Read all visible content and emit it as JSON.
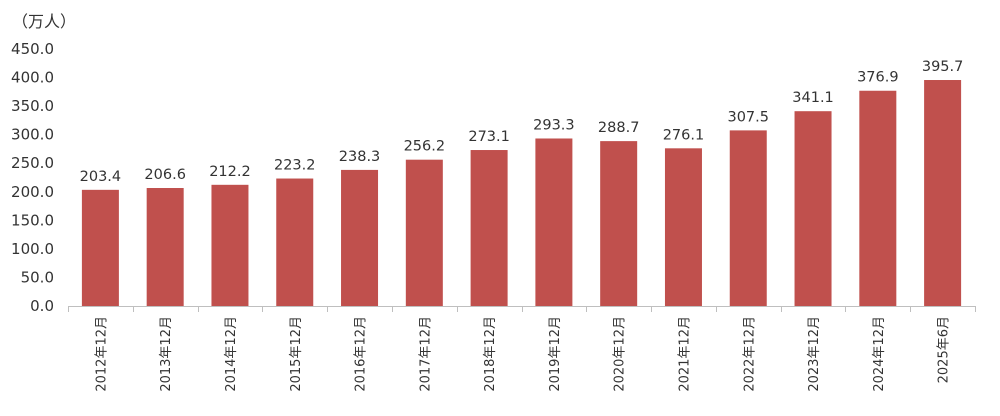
{
  "chart_data": {
    "type": "bar",
    "unit_label": "（万人）",
    "categories": [
      "2012年12月",
      "2013年12月",
      "2014年12月",
      "2015年12月",
      "2016年12月",
      "2017年12月",
      "2018年12月",
      "2019年12月",
      "2020年12月",
      "2021年12月",
      "2022年12月",
      "2023年12月",
      "2024年12月",
      "2025年6月"
    ],
    "values": [
      203.4,
      206.6,
      212.2,
      223.2,
      238.3,
      256.2,
      273.1,
      293.3,
      288.7,
      276.1,
      307.5,
      341.1,
      376.9,
      395.7
    ],
    "data_labels": [
      "203.4",
      "206.6",
      "212.2",
      "223.2",
      "238.3",
      "256.2",
      "273.1",
      "293.3",
      "288.7",
      "276.1",
      "307.5",
      "341.1",
      "376.9",
      "395.7"
    ],
    "yticks": [
      "0.0",
      "50.0",
      "100.0",
      "150.0",
      "200.0",
      "250.0",
      "300.0",
      "350.0",
      "400.0",
      "450.0"
    ],
    "ylim": [
      0,
      450
    ],
    "grid": false,
    "legend": "none",
    "bar_color": "#C0504D",
    "axis_color": "#BFBFBF",
    "text_color": "#333333"
  }
}
